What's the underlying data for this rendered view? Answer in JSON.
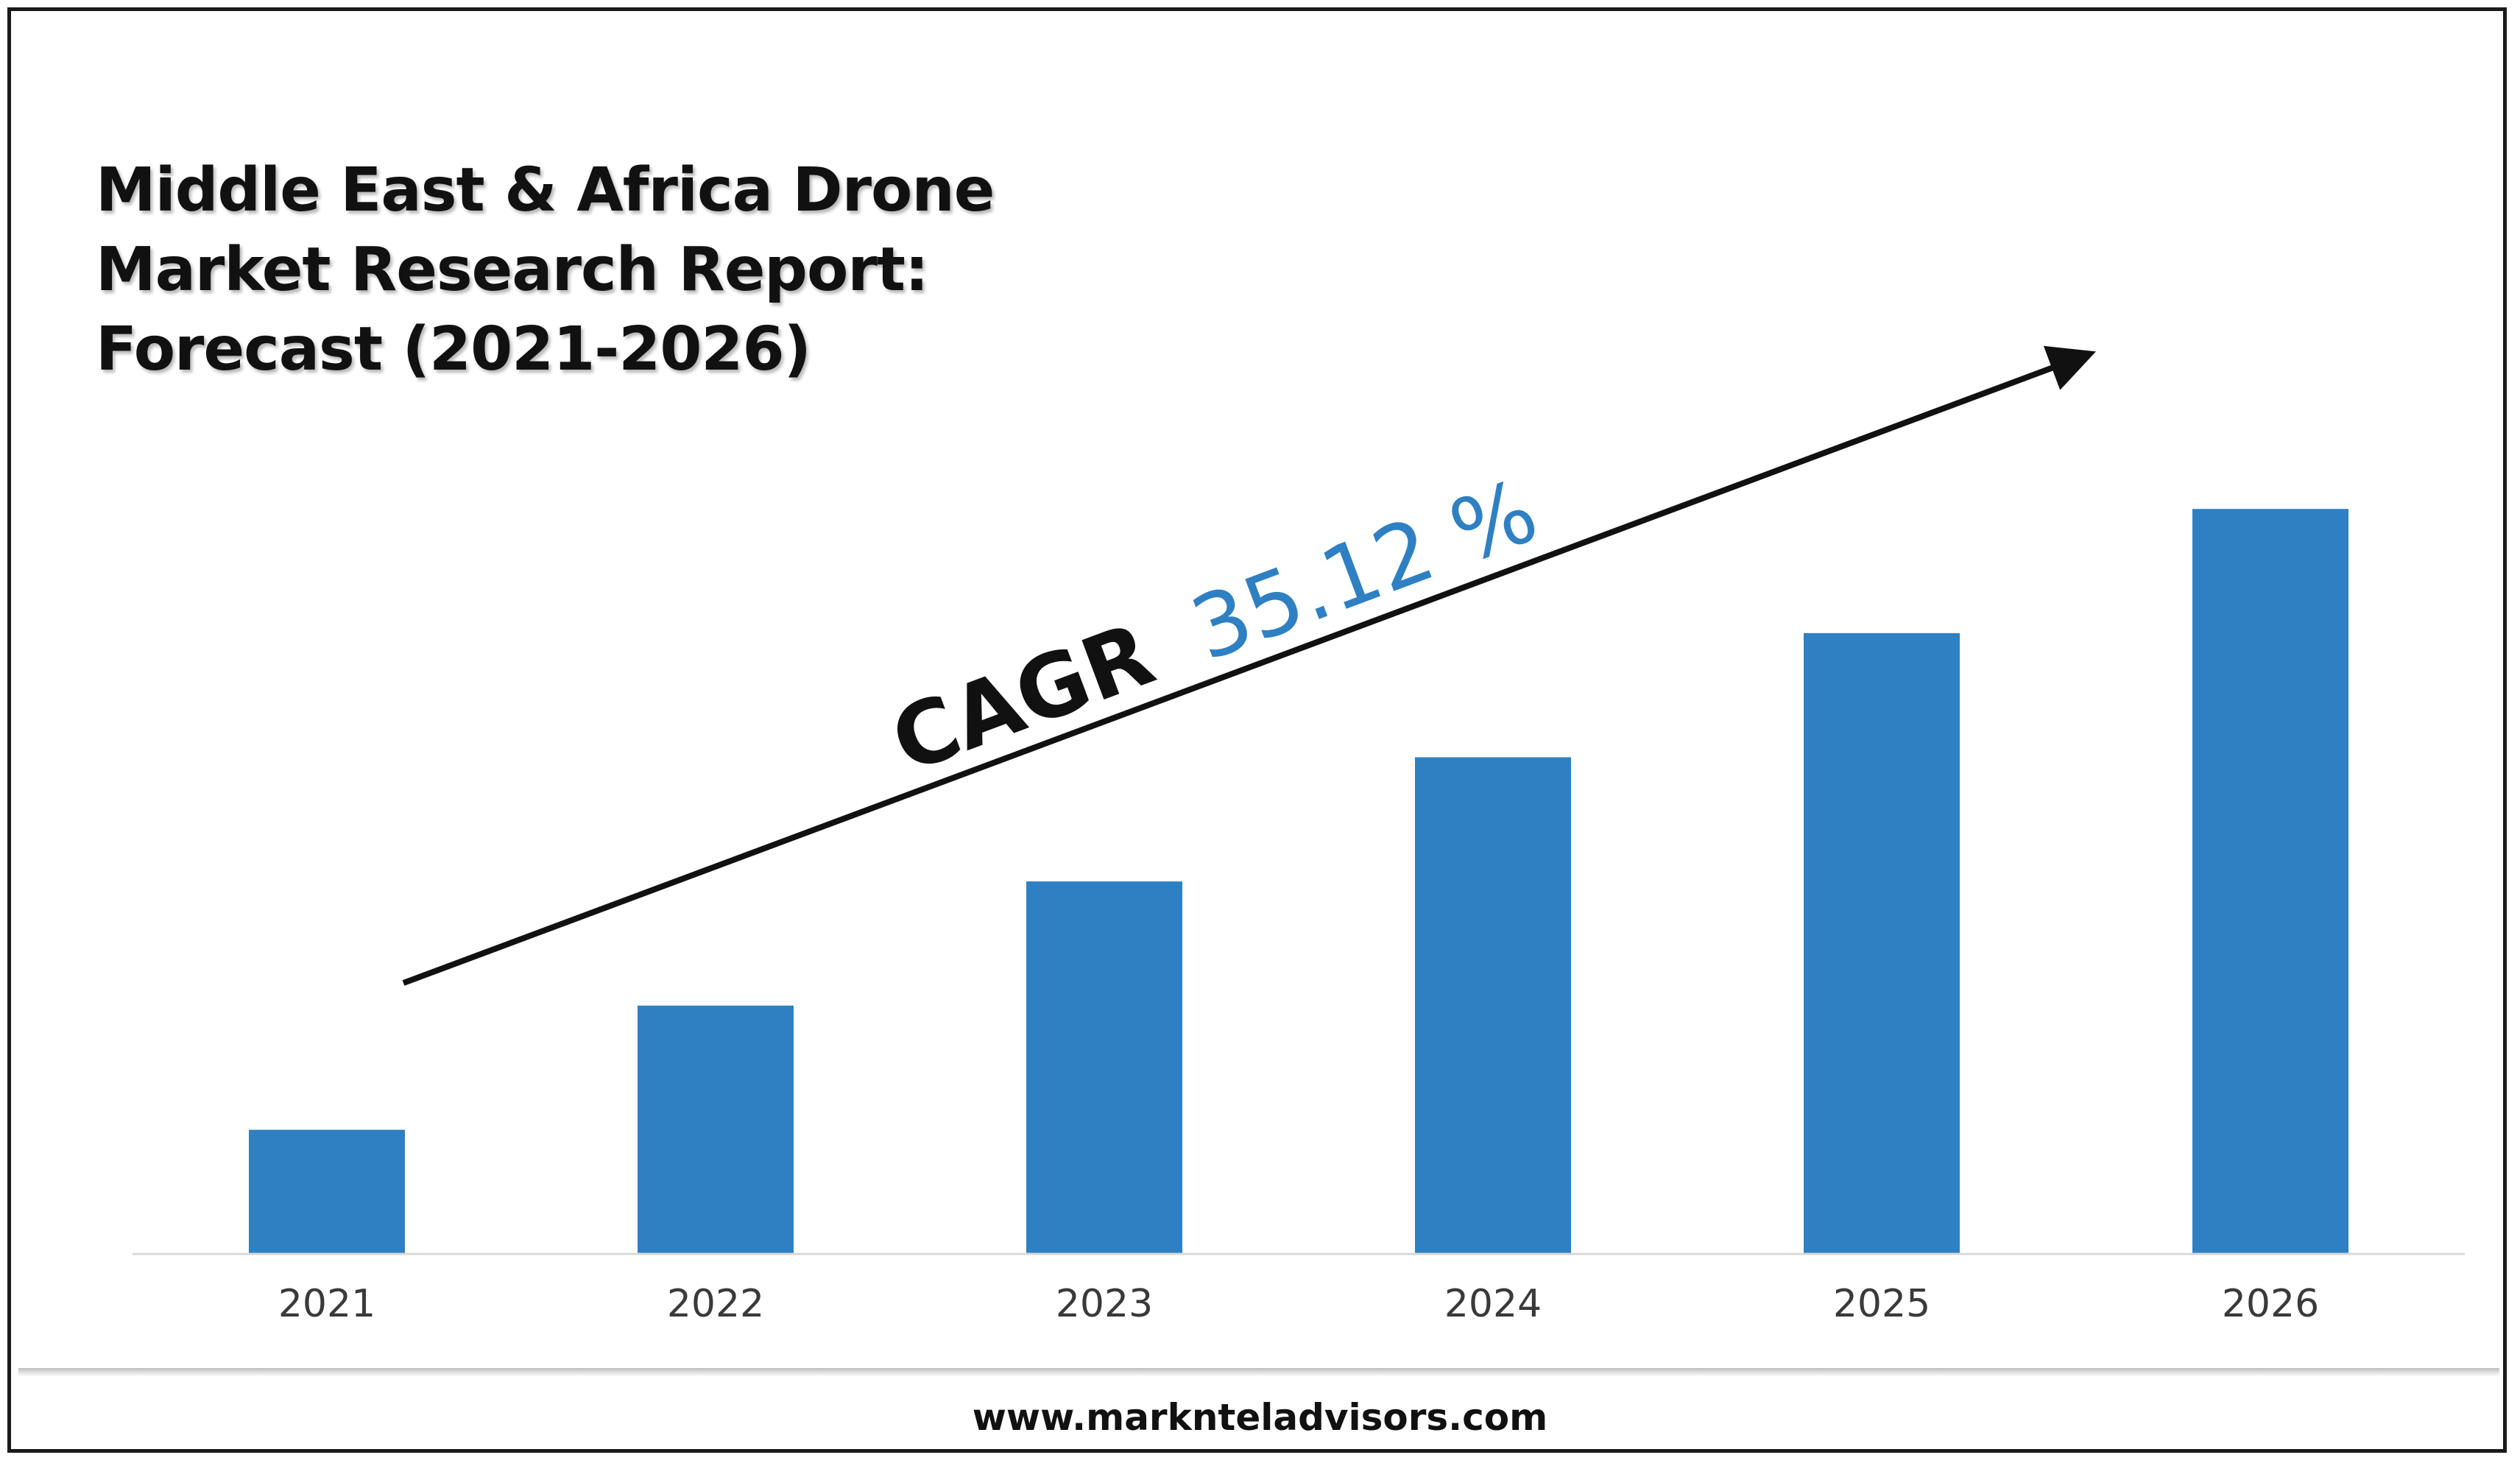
{
  "title": {
    "line1": "Middle East & Africa Drone",
    "line2": "Market Research Report:",
    "line3": "Forecast (2021-2026)"
  },
  "cagr": {
    "label": "CAGR",
    "value": "35.12 %",
    "value_color": "#2F80C3"
  },
  "footer": {
    "url": "www.marknteladvisors.com"
  },
  "colors": {
    "bar": "#2F80C3",
    "axis": "#d9d9d9",
    "arrow": "#111111"
  },
  "chart_data": {
    "type": "bar",
    "categories": [
      "2021",
      "2022",
      "2023",
      "2024",
      "2025",
      "2026"
    ],
    "values": [
      1,
      2,
      3,
      4,
      5,
      6
    ],
    "ylim": [
      0,
      6.6
    ],
    "title": "Middle East & Africa Drone Market Research Report: Forecast (2021-2026)",
    "xlabel": "",
    "ylabel": "",
    "grid": false,
    "legend": "none",
    "annotations": [
      "CAGR 35.12 %"
    ]
  }
}
